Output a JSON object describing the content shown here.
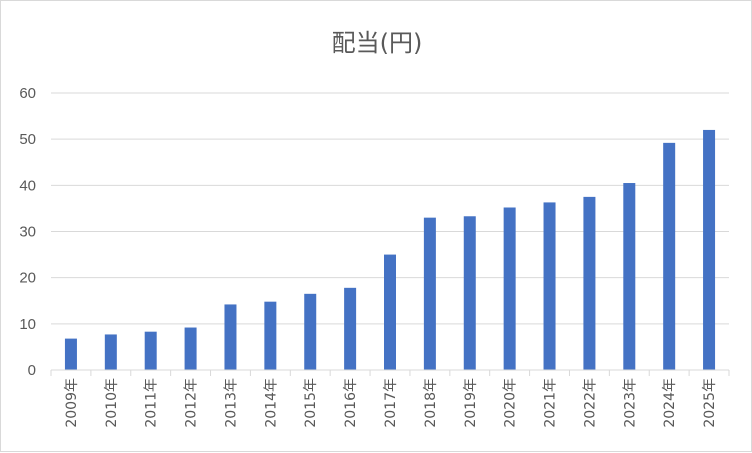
{
  "chart_data": {
    "type": "bar",
    "title": "配当(円)",
    "xlabel": "",
    "ylabel": "",
    "ylim": [
      0,
      60
    ],
    "yticks": [
      0,
      10,
      20,
      30,
      40,
      50,
      60
    ],
    "grid": true,
    "legend": "none",
    "bar_color": "#4472c4",
    "categories": [
      "2009年",
      "2010年",
      "2011年",
      "2012年",
      "2013年",
      "2014年",
      "2015年",
      "2016年",
      "2017年",
      "2018年",
      "2019年",
      "2020年",
      "2021年",
      "2022年",
      "2023年",
      "2024年",
      "2025年"
    ],
    "values": [
      6.8,
      7.7,
      8.3,
      9.2,
      14.2,
      14.8,
      16.5,
      17.8,
      25.0,
      33.0,
      33.3,
      35.2,
      36.3,
      37.5,
      40.5,
      49.2,
      52.0
    ]
  }
}
